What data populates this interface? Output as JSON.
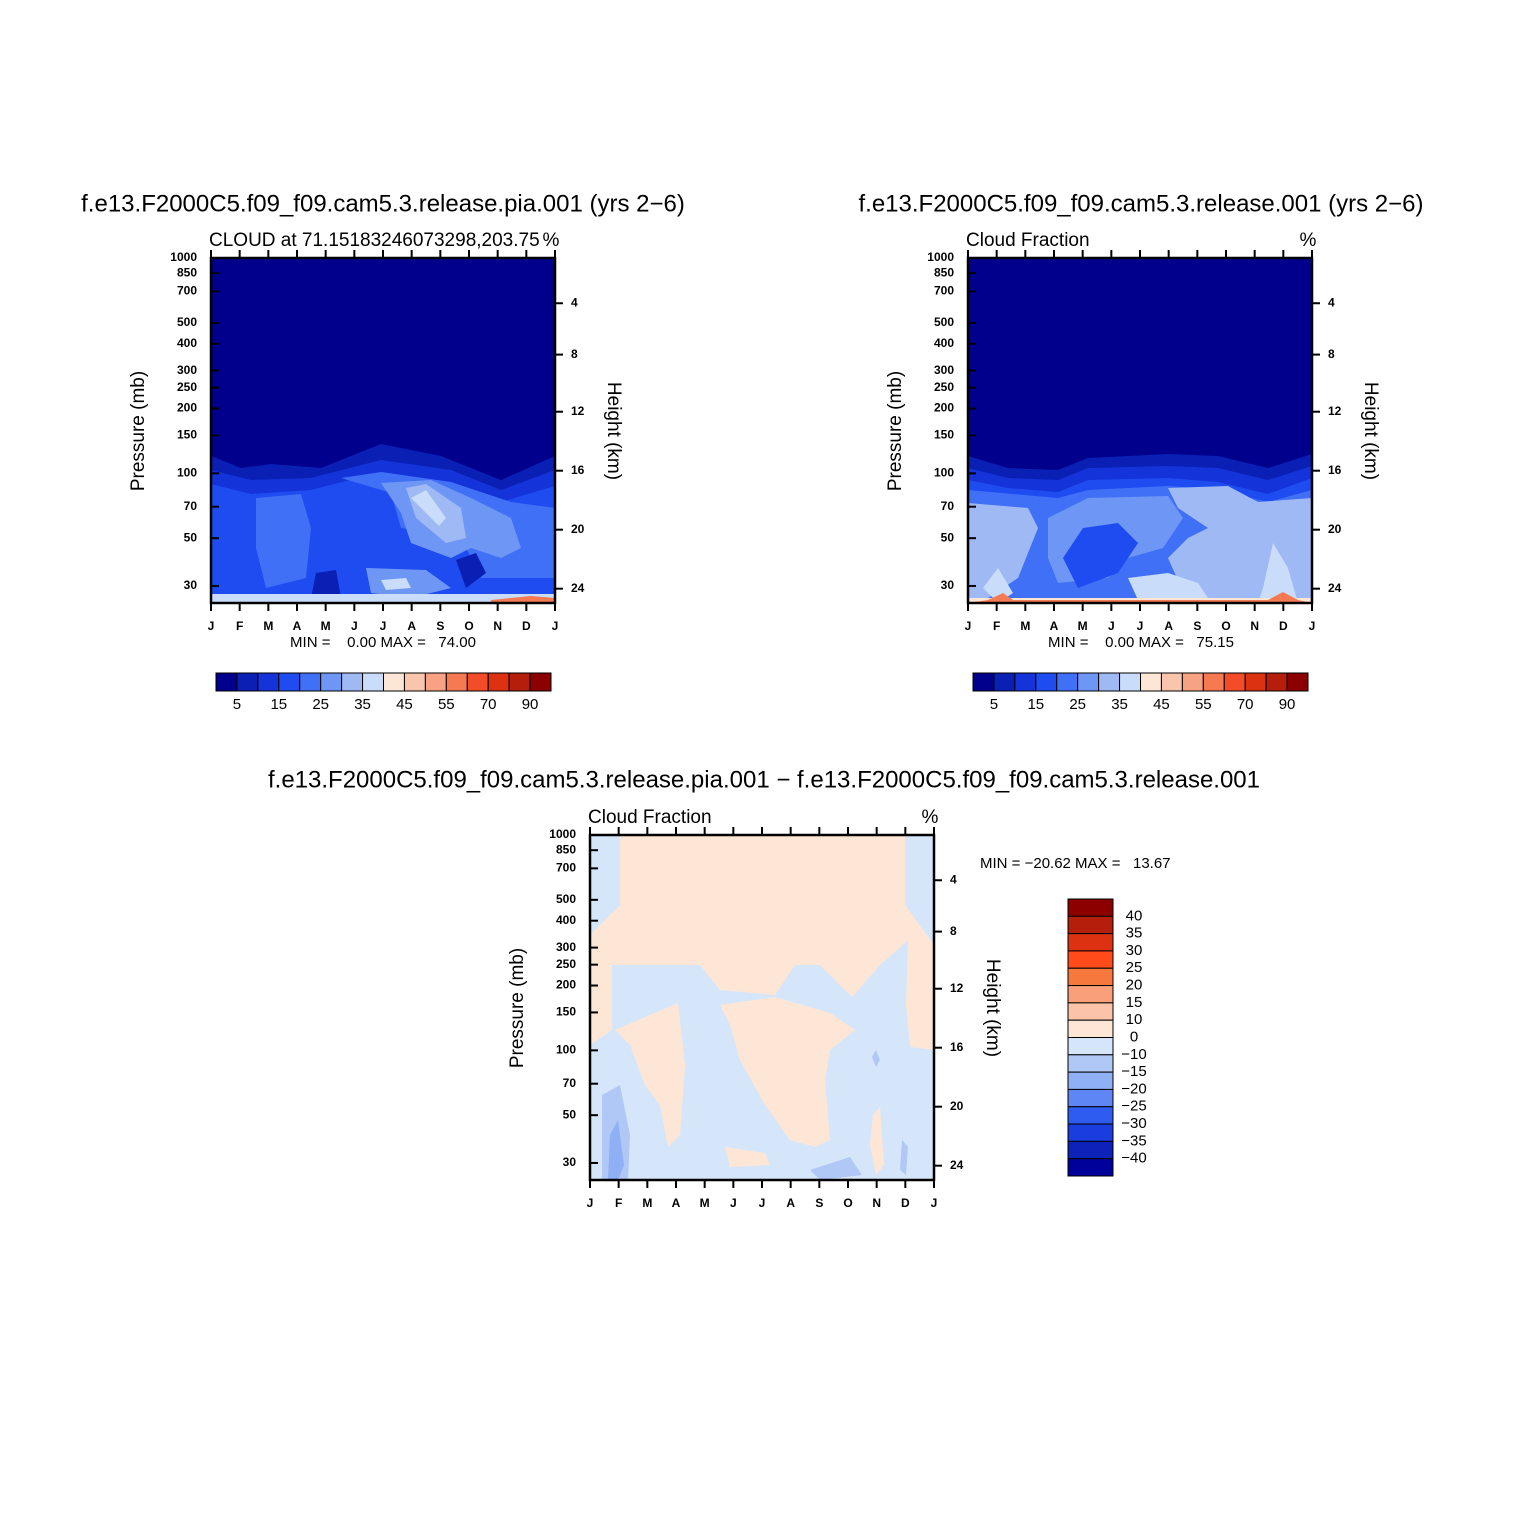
{
  "chart_data": [
    {
      "type": "contour",
      "title": "f.e13.F2000C5.f09_f09.cam5.3.release.pia.001 (yrs 2−6)",
      "subtitle": "CLOUD at 71.15183246073298,203.75",
      "units": "%",
      "ylabel": "Pressure (mb)",
      "y2label": "Height (km)",
      "categories": [
        "J",
        "F",
        "M",
        "A",
        "M",
        "J",
        "J",
        "A",
        "S",
        "O",
        "N",
        "D",
        "J"
      ],
      "ylim": [
        1000,
        25
      ],
      "log_y": true,
      "yticks": [
        30,
        50,
        70,
        100,
        150,
        200,
        250,
        300,
        400,
        500,
        700,
        850,
        1000
      ],
      "y2ticks": [
        4,
        8,
        12,
        16,
        20,
        24
      ],
      "stats": "MIN =    0.00 MAX =   74.00",
      "colorbar": {
        "orientation": "horizontal",
        "colors": [
          "#00008c",
          "#0a1fb4",
          "#1433d9",
          "#1e4cf0",
          "#4070f5",
          "#6e96f5",
          "#9fb9f5",
          "#c9dcfa",
          "#fde6d6",
          "#f9c6ad",
          "#f7a282",
          "#f57a52",
          "#f24d28",
          "#dc3212",
          "#b41e0a",
          "#8c0000"
        ],
        "labels": [
          5,
          15,
          25,
          35,
          45,
          55,
          70,
          90
        ]
      }
    },
    {
      "type": "contour",
      "title": "f.e13.F2000C5.f09_f09.cam5.3.release.001 (yrs 2−6)",
      "subtitle": "Cloud Fraction",
      "units": "%",
      "ylabel": "Pressure (mb)",
      "y2label": "Height (km)",
      "categories": [
        "J",
        "F",
        "M",
        "A",
        "M",
        "J",
        "J",
        "A",
        "S",
        "O",
        "N",
        "D",
        "J"
      ],
      "ylim": [
        1000,
        25
      ],
      "log_y": true,
      "yticks": [
        30,
        50,
        70,
        100,
        150,
        200,
        250,
        300,
        400,
        500,
        700,
        850,
        1000
      ],
      "y2ticks": [
        4,
        8,
        12,
        16,
        20,
        24
      ],
      "stats": "MIN =    0.00 MAX =   75.15",
      "colorbar": {
        "orientation": "horizontal",
        "colors": [
          "#00008c",
          "#0a1fb4",
          "#1433d9",
          "#1e4cf0",
          "#4070f5",
          "#6e96f5",
          "#9fb9f5",
          "#c9dcfa",
          "#fde6d6",
          "#f9c6ad",
          "#f7a282",
          "#f57a52",
          "#f24d28",
          "#dc3212",
          "#b41e0a",
          "#8c0000"
        ],
        "labels": [
          5,
          15,
          25,
          35,
          45,
          55,
          70,
          90
        ]
      }
    },
    {
      "type": "contour",
      "title": "f.e13.F2000C5.f09_f09.cam5.3.release.pia.001 − f.e13.F2000C5.f09_f09.cam5.3.release.001",
      "subtitle": "Cloud Fraction",
      "units": "%",
      "ylabel": "Pressure (mb)",
      "y2label": "Height (km)",
      "categories": [
        "J",
        "F",
        "M",
        "A",
        "M",
        "J",
        "J",
        "A",
        "S",
        "O",
        "N",
        "D",
        "J"
      ],
      "ylim": [
        1000,
        25
      ],
      "log_y": true,
      "yticks": [
        30,
        50,
        70,
        100,
        150,
        200,
        250,
        300,
        400,
        500,
        700,
        850,
        1000
      ],
      "y2ticks": [
        4,
        8,
        12,
        16,
        20,
        24
      ],
      "stats": "MIN = −20.62 MAX =   13.67",
      "colorbar": {
        "orientation": "vertical",
        "colors": [
          "#8c0000",
          "#b41e0a",
          "#dc3212",
          "#ff4a1a",
          "#f7783c",
          "#f9a07a",
          "#fbc4a8",
          "#fde6d6",
          "#d6e6fa",
          "#b0c8f5",
          "#8fb0f5",
          "#5e86f5",
          "#2e5cf0",
          "#1a3de0",
          "#0d22b8",
          "#00009a"
        ],
        "labels": [
          40,
          35,
          30,
          25,
          20,
          15,
          10,
          0,
          {
            "value": -10,
            "label": "−10"
          },
          {
            "value": -15,
            "label": "−15"
          },
          {
            "value": -20,
            "label": "−20"
          },
          {
            "value": -25,
            "label": "−25"
          },
          {
            "value": -30,
            "label": "−30"
          },
          {
            "value": -35,
            "label": "−35"
          },
          {
            "value": -40,
            "label": "−40"
          }
        ]
      }
    }
  ]
}
